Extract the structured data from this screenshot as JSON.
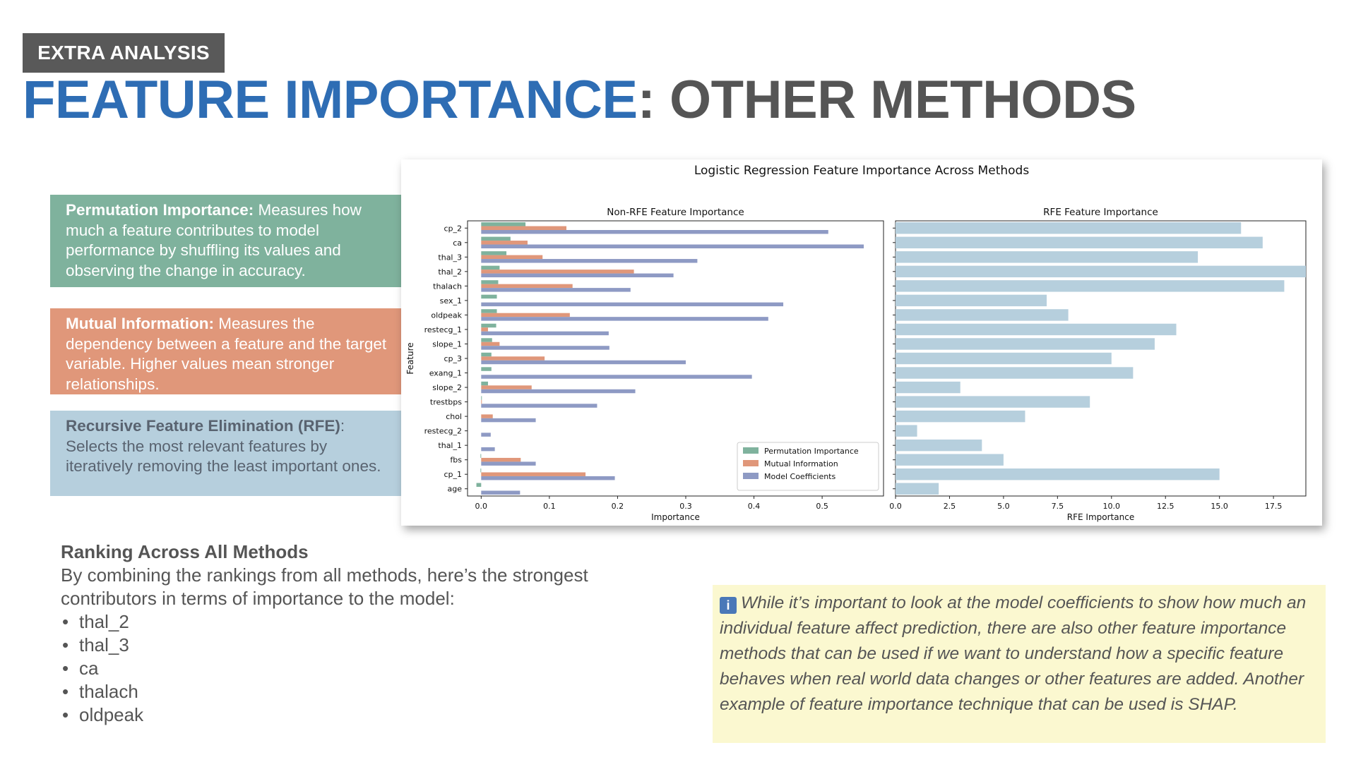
{
  "header": {
    "tag": "EXTRA ANALYSIS",
    "title_highlight": "FEATURE IMPORTANCE",
    "title_rest": ": OTHER METHODS"
  },
  "callouts": [
    {
      "term": "Permutation Importance:",
      "text": " Measures how much a feature contributes to model performance by shuffling its values and observing the change in accuracy.",
      "color": "#7fb29d"
    },
    {
      "term": "Mutual Information:",
      "text": " Measures the dependency between a feature and the target variable. Higher values mean stronger relationships.",
      "color": "#e0977a"
    },
    {
      "term": "Recursive Feature Elimination (RFE)",
      "text": ":  Selects the most relevant features by iteratively removing the least important ones.",
      "color": "#b6cfdd"
    }
  ],
  "ranking": {
    "heading": "Ranking Across All Methods",
    "text": "By combining the rankings from all methods, here’s the strongest contributors in terms of importance to the model:",
    "items": [
      "thal_2",
      "thal_3",
      "ca",
      "thalach",
      "oldpeak"
    ]
  },
  "note": {
    "icon": "info-icon",
    "text": "While it’s important to look at the model coefficients to show how much an individual feature affect prediction, there are also other feature importance methods that can be used if we want to understand how a specific feature behaves when real world data changes or other features are added. Another example of feature importance technique that can be used is SHAP."
  },
  "chart_data": [
    {
      "type": "bar",
      "orientation": "horizontal",
      "figure_title": "Logistic Regression Feature Importance Across Methods",
      "title": "Non-RFE Feature Importance",
      "xlabel": "Importance",
      "ylabel": "Feature",
      "xlim": [
        -0.02,
        0.59
      ],
      "xticks": [
        "0.0",
        "0.1",
        "0.2",
        "0.3",
        "0.4",
        "0.5"
      ],
      "legend_position": "lower-right",
      "categories": [
        "cp_2",
        "ca",
        "thal_3",
        "thal_2",
        "thalach",
        "sex_1",
        "oldpeak",
        "restecg_1",
        "slope_1",
        "cp_3",
        "exang_1",
        "slope_2",
        "trestbps",
        "chol",
        "restecg_2",
        "thal_1",
        "fbs",
        "cp_1",
        "age"
      ],
      "series": [
        {
          "name": "Permutation Importance",
          "color": "#7fb29d",
          "values": [
            0.065,
            0.043,
            0.037,
            0.027,
            0.025,
            0.023,
            0.023,
            0.022,
            0.016,
            0.015,
            0.015,
            0.01,
            0.001,
            0.0,
            0.0,
            0.0,
            -0.001,
            -0.001,
            -0.007
          ]
        },
        {
          "name": "Mutual Information",
          "color": "#e0977a",
          "values": [
            0.125,
            0.068,
            0.09,
            0.224,
            0.134,
            0.0,
            0.13,
            0.01,
            0.027,
            0.093,
            0.0,
            0.074,
            0.001,
            0.017,
            0.0,
            0.0,
            0.058,
            0.153,
            0.0
          ]
        },
        {
          "name": "Model Coefficients",
          "color": "#8e9ac4",
          "values": [
            0.509,
            0.561,
            0.317,
            0.282,
            0.219,
            0.443,
            0.421,
            0.187,
            0.188,
            0.3,
            0.397,
            0.226,
            0.17,
            0.08,
            0.014,
            0.02,
            0.08,
            0.196,
            0.057
          ]
        }
      ]
    },
    {
      "type": "bar",
      "orientation": "horizontal",
      "title": "RFE Feature Importance",
      "xlabel": "RFE Importance",
      "xlim": [
        0,
        19
      ],
      "xticks": [
        "0.0",
        "2.5",
        "5.0",
        "7.5",
        "10.0",
        "12.5",
        "15.0",
        "17.5"
      ],
      "color": "#b6cfdd",
      "categories": [
        "cp_2",
        "ca",
        "thal_3",
        "thal_2",
        "thalach",
        "sex_1",
        "oldpeak",
        "restecg_1",
        "slope_1",
        "cp_3",
        "exang_1",
        "slope_2",
        "trestbps",
        "chol",
        "restecg_2",
        "thal_1",
        "fbs",
        "cp_1",
        "age"
      ],
      "values": [
        16,
        17,
        14,
        19,
        18,
        7,
        8,
        13,
        12,
        10,
        11,
        3,
        9,
        6,
        1,
        4,
        5,
        15,
        2
      ]
    }
  ]
}
